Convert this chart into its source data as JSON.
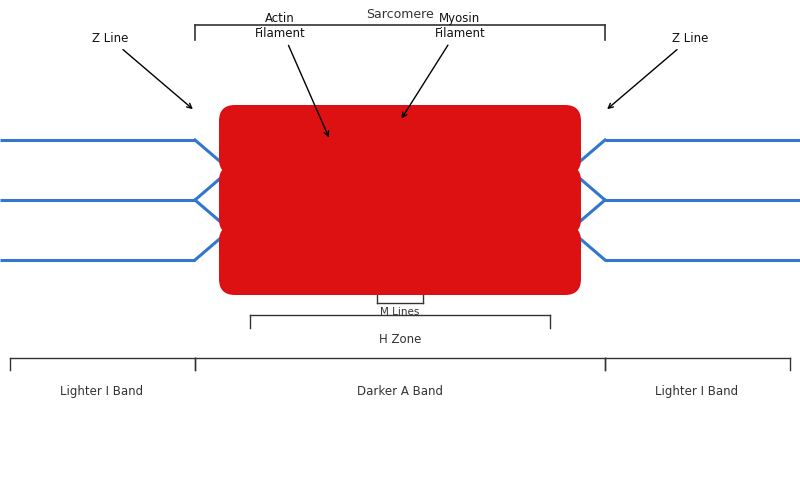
{
  "background_color": "#ffffff",
  "blue_color": "#3377cc",
  "red_color": "#dd1111",
  "line_color": "#333333",
  "text_color": "#111111",
  "figure_width": 8.0,
  "figure_height": 5.0,
  "dpi": 100,
  "bottom_bar_color": "#111111",
  "bottom_bar_height": 0.1,
  "sarcomere_label": "Sarcomere",
  "z_line_label": "Z Line",
  "actin_label": "Actin\nFilament",
  "myosin_label": "Myosin\nFilament",
  "m_lines_label": "M Lines",
  "h_zone_label": "H Zone",
  "lighter_i_band_label": "Lighter I Band",
  "darker_a_band_label": "Darker A Band",
  "lighter_i_band_label2": "Lighter I Band",
  "lw_blue": 2.2,
  "lw_annot": 1.0
}
